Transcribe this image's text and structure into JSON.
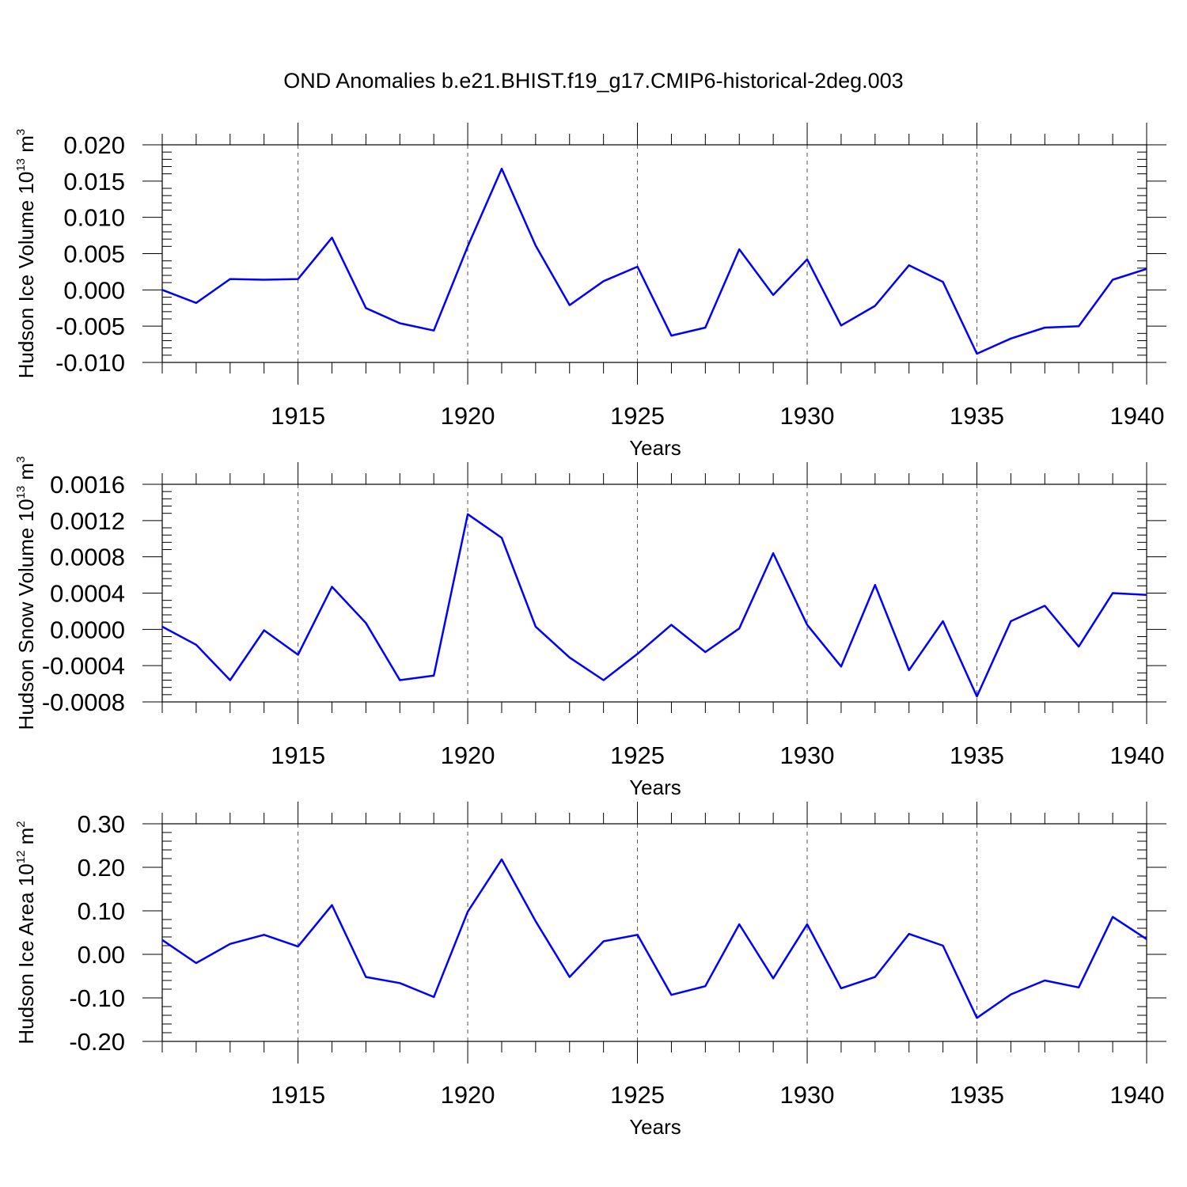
{
  "title": "OND Anomalies b.e21.BHIST.f19_g17.CMIP6-historical-2deg.003",
  "chart_data": [
    {
      "type": "line",
      "ylabel_main": "Hudson Ice Volume 10",
      "ylabel_exp": "13",
      "ylabel_unit": " m",
      "ylabel_unit_exp": "3",
      "xlabel": "Years",
      "xlim": [
        1911,
        1940
      ],
      "ylim": [
        -0.01,
        0.02
      ],
      "yticks": [
        -0.01,
        -0.005,
        0.0,
        0.005,
        0.01,
        0.015,
        0.02
      ],
      "ytick_labels": [
        "-0.010",
        "-0.005",
        "0.000",
        "0.005",
        "0.010",
        "0.015",
        "0.020"
      ],
      "xticks": [
        1915,
        1920,
        1925,
        1930,
        1935,
        1940
      ],
      "xtick_labels": [
        "1915",
        "1920",
        "1925",
        "1930",
        "1935",
        "1940"
      ],
      "grid_x": true,
      "color": "#0000ff",
      "x": [
        1911,
        1912,
        1913,
        1914,
        1915,
        1916,
        1917,
        1918,
        1919,
        1920,
        1921,
        1922,
        1923,
        1924,
        1925,
        1926,
        1927,
        1928,
        1929,
        1930,
        1931,
        1932,
        1933,
        1934,
        1935,
        1936,
        1937,
        1938,
        1939,
        1940
      ],
      "values": [
        0.0,
        -0.0018,
        0.0015,
        0.0014,
        0.0015,
        0.0072,
        -0.0025,
        -0.0046,
        -0.0056,
        0.006,
        0.0167,
        0.0061,
        -0.0021,
        0.0012,
        0.0032,
        -0.0063,
        -0.0052,
        0.0056,
        -0.0007,
        0.0042,
        -0.0049,
        -0.0022,
        0.0034,
        0.0011,
        -0.0088,
        -0.0067,
        -0.0052,
        -0.005,
        0.0014,
        0.0029
      ]
    },
    {
      "type": "line",
      "ylabel_main": "Hudson Snow Volume 10",
      "ylabel_exp": "13",
      "ylabel_unit": " m",
      "ylabel_unit_exp": "3",
      "xlabel": "Years",
      "xlim": [
        1911,
        1940
      ],
      "ylim": [
        -0.0008,
        0.0016
      ],
      "yticks": [
        -0.0008,
        -0.0004,
        0.0,
        0.0004,
        0.0008,
        0.0012,
        0.0016
      ],
      "ytick_labels": [
        "-0.0008",
        "-0.0004",
        "0.0000",
        "0.0004",
        "0.0008",
        "0.0012",
        "0.0016"
      ],
      "xticks": [
        1915,
        1920,
        1925,
        1930,
        1935,
        1940
      ],
      "xtick_labels": [
        "1915",
        "1920",
        "1925",
        "1930",
        "1935",
        "1940"
      ],
      "grid_x": true,
      "color": "#0000ff",
      "x": [
        1911,
        1912,
        1913,
        1914,
        1915,
        1916,
        1917,
        1918,
        1919,
        1920,
        1921,
        1922,
        1923,
        1924,
        1925,
        1926,
        1927,
        1928,
        1929,
        1930,
        1931,
        1932,
        1933,
        1934,
        1935,
        1936,
        1937,
        1938,
        1939,
        1940
      ],
      "values": [
        3e-05,
        -0.00017,
        -0.00056,
        -1e-05,
        -0.00028,
        0.00047,
        7e-05,
        -0.00056,
        -0.00051,
        0.00127,
        0.00101,
        3e-05,
        -0.00031,
        -0.00056,
        -0.00027,
        5e-05,
        -0.00025,
        1e-05,
        0.00084,
        5e-05,
        -0.00041,
        0.00049,
        -0.00045,
        9e-05,
        -0.00074,
        9e-05,
        0.00026,
        -0.00019,
        0.0004,
        0.00038
      ]
    },
    {
      "type": "line",
      "ylabel_main": "Hudson Ice Area 10",
      "ylabel_exp": "12",
      "ylabel_unit": " m",
      "ylabel_unit_exp": "2",
      "xlabel": "Years",
      "xlim": [
        1911,
        1940
      ],
      "ylim": [
        -0.2,
        0.3
      ],
      "yticks": [
        -0.2,
        -0.1,
        0.0,
        0.1,
        0.2,
        0.3
      ],
      "ytick_labels": [
        "-0.20",
        "-0.10",
        "0.00",
        "0.10",
        "0.20",
        "0.30"
      ],
      "xticks": [
        1915,
        1920,
        1925,
        1930,
        1935,
        1940
      ],
      "xtick_labels": [
        "1915",
        "1920",
        "1925",
        "1930",
        "1935",
        "1940"
      ],
      "grid_x": true,
      "color": "#0000ff",
      "x": [
        1911,
        1912,
        1913,
        1914,
        1915,
        1916,
        1917,
        1918,
        1919,
        1920,
        1921,
        1922,
        1923,
        1924,
        1925,
        1926,
        1927,
        1928,
        1929,
        1930,
        1931,
        1932,
        1933,
        1934,
        1935,
        1936,
        1937,
        1938,
        1939,
        1940
      ],
      "values": [
        0.033,
        -0.02,
        0.024,
        0.045,
        0.018,
        0.113,
        -0.052,
        -0.066,
        -0.098,
        0.098,
        0.218,
        0.076,
        -0.052,
        0.03,
        0.045,
        -0.093,
        -0.073,
        0.069,
        -0.055,
        0.069,
        -0.078,
        -0.052,
        0.047,
        0.02,
        -0.146,
        -0.092,
        -0.06,
        -0.076,
        0.086,
        0.035
      ]
    }
  ]
}
